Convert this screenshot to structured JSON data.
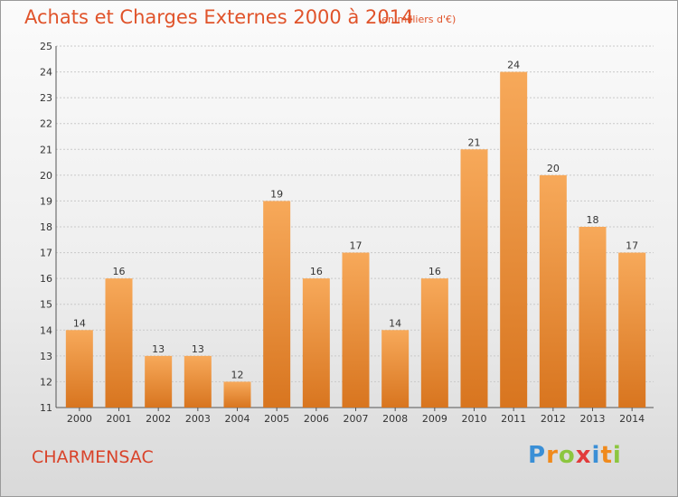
{
  "header": {
    "title": "Achats et Charges Externes 2000 à 2014",
    "subtitle": "(en milliers d'€)"
  },
  "footer": {
    "city": "CHARMENSAC",
    "logo_letters": [
      {
        "char": "P",
        "color": "#3a8fd6"
      },
      {
        "char": "r",
        "color": "#f08a1c"
      },
      {
        "char": "o",
        "color": "#8cc63f"
      },
      {
        "char": "x",
        "color": "#e23b3b"
      },
      {
        "char": "i",
        "color": "#3a8fd6"
      },
      {
        "char": "t",
        "color": "#f08a1c"
      },
      {
        "char": "i",
        "color": "#8cc63f"
      }
    ]
  },
  "colors": {
    "bar_top": "#f7a95a",
    "bar_bottom": "#d8751f",
    "grid": "#c9c9c9",
    "axis": "#555555"
  },
  "chart_data": {
    "type": "bar",
    "categories": [
      "2000",
      "2001",
      "2002",
      "2003",
      "2004",
      "2005",
      "2006",
      "2007",
      "2008",
      "2009",
      "2010",
      "2011",
      "2012",
      "2013",
      "2014"
    ],
    "values": [
      14,
      16,
      13,
      13,
      12,
      19,
      16,
      17,
      14,
      16,
      21,
      24,
      20,
      18,
      17
    ],
    "data_labels": [
      "14",
      "16",
      "13",
      "13",
      "12",
      "19",
      "16",
      "17",
      "14",
      "16",
      "21",
      "24",
      "20",
      "18",
      "17"
    ],
    "ylim": [
      11,
      25
    ],
    "yticks": [
      11,
      12,
      13,
      14,
      15,
      16,
      17,
      18,
      19,
      20,
      21,
      22,
      23,
      24,
      25
    ],
    "grid": true,
    "legend": "none"
  }
}
